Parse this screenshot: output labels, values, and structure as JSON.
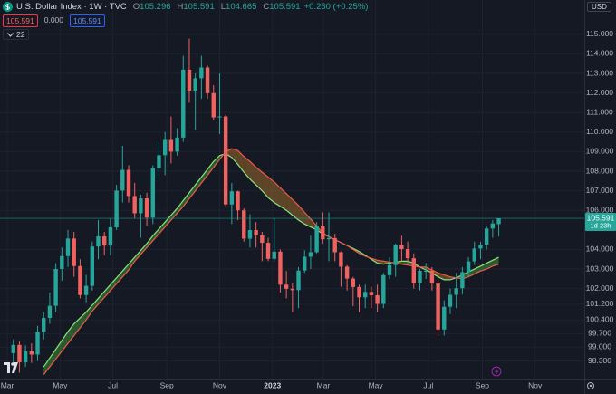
{
  "header": {
    "symbol": "U.S. Dollar Index · 1W · TVC",
    "o": "O",
    "h": "H",
    "l": "L",
    "c": "C",
    "change": "+0.260 (+0.25%)",
    "bid": 105.591,
    "spread": "0.000",
    "ask": 105.591,
    "indicator_count": 22,
    "currency": "USD"
  },
  "chart_data": {
    "type": "candlestick",
    "x": [
      1,
      2,
      3,
      4,
      5,
      6,
      7,
      8,
      9,
      10,
      11,
      12,
      13,
      14,
      15,
      16,
      17,
      18,
      19,
      20,
      21,
      22,
      23,
      24,
      25,
      26,
      27,
      28,
      29,
      30,
      31,
      32,
      33,
      34,
      35,
      36,
      37,
      38,
      39,
      40,
      41,
      42,
      43,
      44,
      45,
      46,
      47,
      48,
      49,
      50,
      51,
      52,
      53,
      54,
      55,
      56,
      57,
      58,
      59,
      60,
      61,
      62,
      63,
      64,
      65,
      66,
      67,
      68,
      69,
      70,
      71,
      72,
      73,
      74,
      75,
      76,
      77,
      78,
      79,
      80,
      81
    ],
    "open": [
      98.7,
      99.12,
      98.23,
      98.79,
      98.63,
      99.79,
      100.5,
      101.12,
      103.0,
      103.66,
      104.56,
      103.15,
      101.67,
      102.14,
      104.15,
      104.67,
      104.2,
      105.13,
      107.01,
      108.07,
      106.73,
      105.85,
      106.61,
      105.63,
      108.16,
      108.82,
      109.6,
      109.0,
      109.72,
      113.19,
      112.12,
      112.75,
      113.3,
      111.99,
      110.75,
      110.8,
      106.3,
      106.97,
      106.0,
      104.55,
      104.99,
      104.73,
      104.34,
      103.52,
      103.89,
      102.2,
      101.99,
      101.92,
      102.92,
      103.63,
      103.86,
      105.21,
      104.52,
      104.58,
      103.86,
      103.12,
      102.51,
      102.08,
      101.55,
      101.83,
      101.66,
      101.22,
      102.69,
      103.2,
      104.23,
      104.02,
      103.55,
      102.26,
      102.91,
      102.91,
      102.27,
      99.91,
      101.07,
      101.68,
      102.02,
      102.84,
      103.39,
      104.05,
      104.24,
      105.07,
      105.296
    ],
    "high": [
      99.4,
      99.3,
      99.1,
      99.2,
      100.1,
      100.8,
      101.8,
      103.3,
      104.1,
      105.0,
      104.9,
      103.5,
      102.7,
      104.4,
      105.5,
      104.9,
      105.6,
      107.3,
      109.3,
      108.3,
      107.4,
      106.8,
      106.9,
      108.3,
      109.5,
      110.0,
      110.8,
      110.2,
      113.9,
      114.78,
      113.0,
      113.9,
      113.4,
      112.4,
      113.0,
      110.9,
      107.4,
      107.0,
      106.1,
      105.8,
      105.4,
      104.9,
      104.6,
      105.6,
      104.0,
      102.9,
      102.3,
      103.1,
      103.96,
      104.7,
      105.4,
      105.9,
      105.9,
      104.8,
      103.9,
      103.2,
      102.6,
      102.2,
      102.2,
      102.1,
      102.2,
      102.8,
      103.6,
      104.3,
      104.7,
      104.4,
      103.8,
      103.0,
      103.3,
      103.1,
      102.4,
      101.4,
      102.0,
      102.8,
      103.1,
      103.6,
      104.4,
      104.4,
      105.2,
      105.5,
      105.591
    ],
    "low": [
      98.2,
      97.7,
      98.0,
      98.2,
      98.3,
      99.4,
      100.2,
      100.8,
      102.4,
      103.1,
      102.6,
      101.5,
      101.3,
      101.9,
      103.5,
      103.7,
      103.7,
      105.0,
      106.4,
      106.4,
      105.6,
      104.6,
      105.2,
      105.3,
      107.6,
      107.8,
      108.4,
      108.8,
      109.5,
      111.5,
      110.1,
      111.7,
      111.7,
      110.6,
      109.9,
      106.2,
      105.3,
      105.5,
      104.4,
      104.1,
      104.1,
      103.4,
      103.4,
      103.4,
      101.8,
      101.5,
      100.8,
      101.0,
      102.8,
      103.0,
      103.8,
      104.3,
      103.4,
      103.4,
      102.1,
      101.9,
      101.1,
      100.8,
      101.0,
      101.0,
      100.8,
      101.0,
      102.5,
      102.6,
      103.4,
      103.3,
      102.0,
      101.9,
      102.5,
      101.9,
      99.58,
      99.6,
      100.7,
      101.0,
      101.7,
      102.6,
      103.2,
      103.5,
      104.0,
      104.6,
      104.665
    ],
    "close": [
      99.12,
      98.23,
      98.79,
      98.63,
      99.79,
      100.5,
      101.12,
      103.0,
      103.66,
      104.56,
      103.15,
      101.67,
      102.14,
      104.15,
      104.67,
      104.2,
      105.13,
      107.01,
      108.07,
      106.73,
      105.85,
      106.61,
      105.63,
      108.16,
      108.82,
      109.6,
      109.0,
      109.72,
      113.19,
      112.12,
      112.75,
      113.3,
      111.99,
      110.75,
      110.8,
      106.3,
      106.97,
      106.0,
      104.55,
      104.99,
      104.73,
      104.34,
      103.52,
      103.89,
      102.2,
      101.99,
      101.92,
      102.92,
      103.63,
      103.86,
      105.21,
      104.52,
      104.58,
      103.86,
      103.12,
      102.51,
      102.08,
      101.55,
      101.83,
      101.66,
      101.22,
      102.69,
      103.2,
      104.23,
      104.02,
      103.55,
      102.26,
      102.91,
      102.91,
      102.27,
      99.91,
      101.07,
      101.68,
      102.02,
      102.84,
      103.39,
      104.05,
      104.24,
      105.07,
      105.331,
      105.591
    ],
    "up_color": "#26a69a",
    "down_color": "#f0625f",
    "overlays": [
      {
        "color": "#8be27a",
        "values": [
          null,
          null,
          null,
          null,
          null,
          98.0,
          98.45,
          98.9,
          99.35,
          99.8,
          100.2,
          100.5,
          100.8,
          101.15,
          101.5,
          101.85,
          102.2,
          102.55,
          102.9,
          103.25,
          103.6,
          103.95,
          104.3,
          104.7,
          105.05,
          105.4,
          105.75,
          106.1,
          106.5,
          106.9,
          107.3,
          107.7,
          108.1,
          108.5,
          108.8,
          108.9,
          108.7,
          108.35,
          107.95,
          107.6,
          107.3,
          107.0,
          106.65,
          106.4,
          106.2,
          106.0,
          105.75,
          105.5,
          105.3,
          105.15,
          105.0,
          104.8,
          104.65,
          104.5,
          104.35,
          104.2,
          104.05,
          103.9,
          103.7,
          103.5,
          103.3,
          103.25,
          103.3,
          103.35,
          103.4,
          103.4,
          103.3,
          103.1,
          102.95,
          102.8,
          102.6,
          102.45,
          102.45,
          102.55,
          102.7,
          102.85,
          103.0,
          103.15,
          103.3,
          103.45,
          103.6
        ]
      },
      {
        "color": "#ef5a45",
        "values": [
          null,
          null,
          null,
          null,
          null,
          97.6,
          98.0,
          98.4,
          98.8,
          99.2,
          99.6,
          100.0,
          100.4,
          100.85,
          101.2,
          101.55,
          101.9,
          102.25,
          102.6,
          102.95,
          103.4,
          103.75,
          104.1,
          104.45,
          104.8,
          105.15,
          105.5,
          105.85,
          106.2,
          106.6,
          107.0,
          107.4,
          107.8,
          108.2,
          108.6,
          109.0,
          109.15,
          109.05,
          108.75,
          108.5,
          108.2,
          107.95,
          107.7,
          107.45,
          107.15,
          106.85,
          106.55,
          106.25,
          105.9,
          105.55,
          105.2,
          104.85,
          104.65,
          104.5,
          104.35,
          104.2,
          104.0,
          103.8,
          103.65,
          103.55,
          103.45,
          103.4,
          103.35,
          103.3,
          103.25,
          103.2,
          103.15,
          103.1,
          103.1,
          102.95,
          102.8,
          102.7,
          102.6,
          102.55,
          102.5,
          102.6,
          102.75,
          102.9,
          103.0,
          103.15,
          103.25
        ]
      }
    ],
    "ribbon_up_color": "#3f8f3a",
    "ribbon_down_color": "#9a6a2c",
    "xlim": [
      -1.2,
      95.1
    ],
    "ylim": [
      97.4,
      116.75
    ],
    "grid": true,
    "xticks": [
      {
        "value": 0,
        "label": "Mar"
      },
      {
        "value": 8.7,
        "label": "May"
      },
      {
        "value": 17.4,
        "label": "Jul"
      },
      {
        "value": 26.3,
        "label": "Sep"
      },
      {
        "value": 35,
        "label": "Nov"
      },
      {
        "value": 43.7,
        "label": "2023"
      },
      {
        "value": 52.1,
        "label": "Mar"
      },
      {
        "value": 60.7,
        "label": "May"
      },
      {
        "value": 69.4,
        "label": "Jul"
      },
      {
        "value": 78.3,
        "label": "Sep"
      },
      {
        "value": 87,
        "label": "Nov"
      }
    ],
    "yticks": [
      {
        "value": 115,
        "label": "115.000"
      },
      {
        "value": 114,
        "label": "114.000"
      },
      {
        "value": 113,
        "label": "113.000"
      },
      {
        "value": 112,
        "label": "112.000"
      },
      {
        "value": 111,
        "label": "111.000"
      },
      {
        "value": 110,
        "label": "110.000"
      },
      {
        "value": 109,
        "label": "109.000"
      },
      {
        "value": 108,
        "label": "108.000"
      },
      {
        "value": 107,
        "label": "107.000"
      },
      {
        "value": 106,
        "label": "106.000"
      },
      {
        "value": 104,
        "label": "104.000"
      },
      {
        "value": 103,
        "label": "103.000"
      },
      {
        "value": 102,
        "label": "102.000"
      },
      {
        "value": 101.2,
        "label": "101.200"
      },
      {
        "value": 100.4,
        "label": "100.400"
      },
      {
        "value": 99.7,
        "label": "99.700"
      },
      {
        "value": 99,
        "label": "99.000"
      },
      {
        "value": 98.3,
        "label": "98.300"
      }
    ],
    "countdown": "1d 23h"
  }
}
